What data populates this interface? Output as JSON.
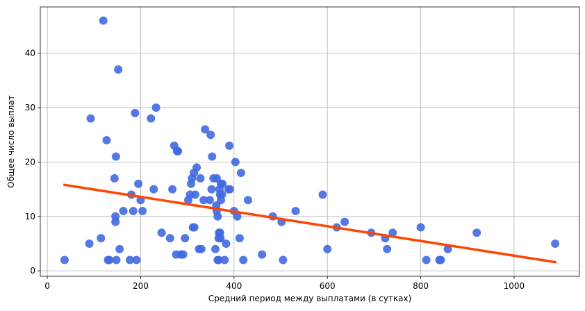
{
  "chart_data": {
    "type": "scatter",
    "title": "",
    "xlabel": "Средний период между выплатами (в сутках)",
    "ylabel": "Общее число выплат",
    "xlim": [
      -15,
      1140
    ],
    "ylim": [
      -1,
      48.5
    ],
    "xticks": [
      0,
      200,
      400,
      600,
      800,
      1000
    ],
    "yticks": [
      0,
      10,
      20,
      30,
      40
    ],
    "grid": true,
    "colors": {
      "points": "#4169e1",
      "trend": "#ff4500",
      "grid": "#b0b0b0",
      "axes": "#000000"
    },
    "series": [
      {
        "type": "scatter",
        "points": [
          [
            37,
            2
          ],
          [
            90,
            5
          ],
          [
            93,
            28
          ],
          [
            115,
            6
          ],
          [
            120,
            46
          ],
          [
            127,
            24
          ],
          [
            130,
            2
          ],
          [
            133,
            2
          ],
          [
            144,
            17
          ],
          [
            146,
            10
          ],
          [
            146,
            9
          ],
          [
            147,
            21
          ],
          [
            148,
            2
          ],
          [
            152,
            37
          ],
          [
            155,
            4
          ],
          [
            163,
            11
          ],
          [
            177,
            2
          ],
          [
            180,
            14
          ],
          [
            184,
            11
          ],
          [
            188,
            29
          ],
          [
            191,
            2
          ],
          [
            195,
            16
          ],
          [
            200,
            13
          ],
          [
            204,
            11
          ],
          [
            222,
            28
          ],
          [
            228,
            15
          ],
          [
            233,
            30
          ],
          [
            245,
            7
          ],
          [
            263,
            6
          ],
          [
            268,
            15
          ],
          [
            272,
            23
          ],
          [
            276,
            3
          ],
          [
            278,
            22
          ],
          [
            280,
            22
          ],
          [
            286,
            3
          ],
          [
            291,
            3
          ],
          [
            295,
            6
          ],
          [
            302,
            13
          ],
          [
            306,
            14
          ],
          [
            308,
            16
          ],
          [
            310,
            17
          ],
          [
            312,
            8
          ],
          [
            314,
            18
          ],
          [
            315,
            8
          ],
          [
            317,
            14
          ],
          [
            320,
            19
          ],
          [
            325,
            4
          ],
          [
            328,
            17
          ],
          [
            330,
            4
          ],
          [
            335,
            13
          ],
          [
            338,
            26
          ],
          [
            348,
            13
          ],
          [
            350,
            25
          ],
          [
            352,
            15
          ],
          [
            353,
            21
          ],
          [
            356,
            17
          ],
          [
            360,
            4
          ],
          [
            362,
            12
          ],
          [
            363,
            11
          ],
          [
            363,
            17
          ],
          [
            365,
            10
          ],
          [
            365,
            2
          ],
          [
            367,
            2
          ],
          [
            367,
            6
          ],
          [
            368,
            7
          ],
          [
            369,
            15
          ],
          [
            370,
            7
          ],
          [
            370,
            14
          ],
          [
            371,
            6
          ],
          [
            372,
            16
          ],
          [
            372,
            13
          ],
          [
            374,
            14
          ],
          [
            375,
            16
          ],
          [
            380,
            2
          ],
          [
            383,
            5
          ],
          [
            388,
            15
          ],
          [
            390,
            23
          ],
          [
            391,
            15
          ],
          [
            400,
            11
          ],
          [
            403,
            20
          ],
          [
            407,
            10
          ],
          [
            412,
            6
          ],
          [
            415,
            18
          ],
          [
            420,
            2
          ],
          [
            430,
            13
          ],
          [
            460,
            3
          ],
          [
            483,
            10
          ],
          [
            502,
            9
          ],
          [
            505,
            2
          ],
          [
            532,
            11
          ],
          [
            590,
            14
          ],
          [
            600,
            4
          ],
          [
            620,
            8
          ],
          [
            637,
            9
          ],
          [
            694,
            7
          ],
          [
            724,
            6
          ],
          [
            728,
            4
          ],
          [
            740,
            7
          ],
          [
            800,
            8
          ],
          [
            812,
            2
          ],
          [
            840,
            2
          ],
          [
            843,
            2
          ],
          [
            858,
            4
          ],
          [
            920,
            7
          ],
          [
            1088,
            5
          ]
        ]
      },
      {
        "type": "line",
        "points": [
          [
            37,
            15.8
          ],
          [
            1088,
            1.6
          ]
        ]
      }
    ]
  }
}
